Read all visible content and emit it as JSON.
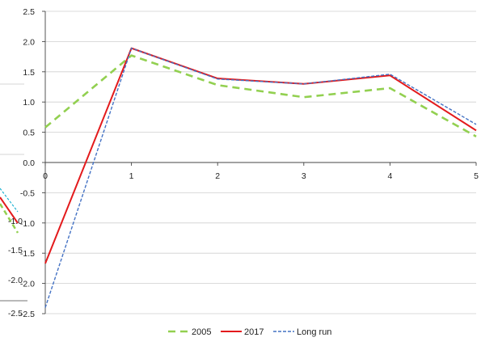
{
  "chart_data": {
    "type": "line",
    "title": "",
    "xlabel": "",
    "ylabel": "",
    "x": [
      0,
      1,
      2,
      3,
      4,
      5
    ],
    "xlim": [
      0,
      5
    ],
    "ylim": [
      -2.5,
      2.5
    ],
    "y_ticks": [
      "2.5",
      "2.0",
      "1.5",
      "1.0",
      "0.5",
      "0.0",
      "-0.5",
      "-1.0",
      "-1.5",
      "-2.0",
      "-2.5"
    ],
    "x_ticks": [
      "0",
      "1",
      "2",
      "3",
      "4",
      "5"
    ],
    "grid": "horizontal",
    "legend_position": "bottom",
    "series": [
      {
        "name": "2005",
        "values": [
          0.58,
          1.77,
          1.28,
          1.08,
          1.23,
          0.43
        ],
        "color": "#92d050",
        "style": "dashed-thick"
      },
      {
        "name": "2017",
        "values": [
          -1.67,
          1.89,
          1.39,
          1.3,
          1.44,
          0.53
        ],
        "color": "#e31a1c",
        "style": "solid"
      },
      {
        "name": "Long run",
        "values": [
          -2.4,
          1.89,
          1.38,
          1.3,
          1.46,
          0.63
        ],
        "color": "#4472c4",
        "style": "dashed-thin"
      }
    ],
    "cropped_chart_fragment": {
      "y_ticks": [
        "-1.0",
        "-1.5",
        "-2.0",
        "-2.5"
      ]
    }
  }
}
